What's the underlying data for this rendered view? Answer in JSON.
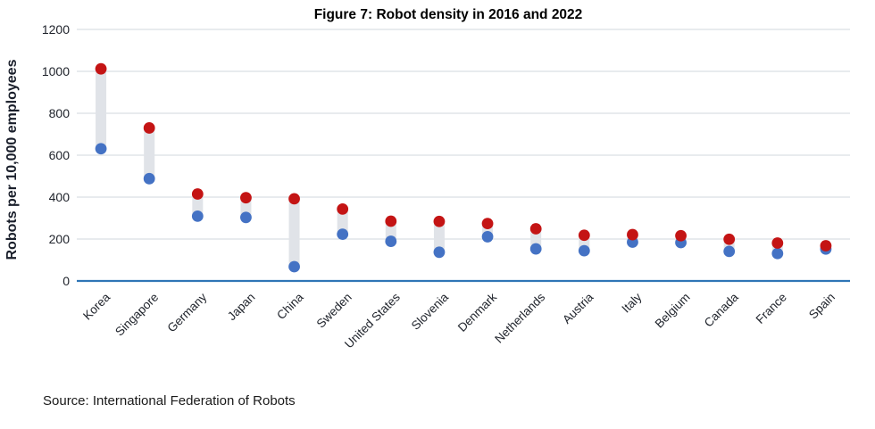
{
  "figure": {
    "title": "Figure 7: Robot density in 2016 and 2022",
    "source": "Source: International Federation of Robots"
  },
  "chart_data": {
    "type": "scatter",
    "subtype": "dumbbell-dot-plot",
    "title": "Figure 7: Robot density in 2016 and 2022",
    "xlabel": "",
    "ylabel": "Robots per 10,000 employees",
    "ylim": [
      0,
      1200
    ],
    "yticks": [
      0,
      200,
      400,
      600,
      800,
      1000,
      1200
    ],
    "grid": true,
    "legend_position": "none",
    "source": "Source: International Federation of Robots",
    "categories": [
      "Korea",
      "Singapore",
      "Germany",
      "Japan",
      "China",
      "Sweden",
      "United States",
      "Slovenia",
      "Denmark",
      "Netherlands",
      "Austria",
      "Italy",
      "Belgium",
      "Canada",
      "France",
      "Spain"
    ],
    "series": [
      {
        "name": "2016",
        "marker": "circle",
        "color": "#4472C4",
        "values": [
          631,
          488,
          309,
          303,
          68,
          223,
          189,
          137,
          211,
          153,
          144,
          185,
          183,
          141,
          131,
          152
        ]
      },
      {
        "name": "2022",
        "marker": "circle",
        "color": "#C41414",
        "values": [
          1012,
          730,
          415,
          397,
          392,
          343,
          285,
          284,
          274,
          249,
          218,
          221,
          216,
          199,
          181,
          168
        ]
      }
    ],
    "connector_color": "#E0E3E8",
    "gridline_color": "#DBDFE4",
    "zero_axis_color": "#2E75B6",
    "tick_label_color": "#20242c"
  }
}
